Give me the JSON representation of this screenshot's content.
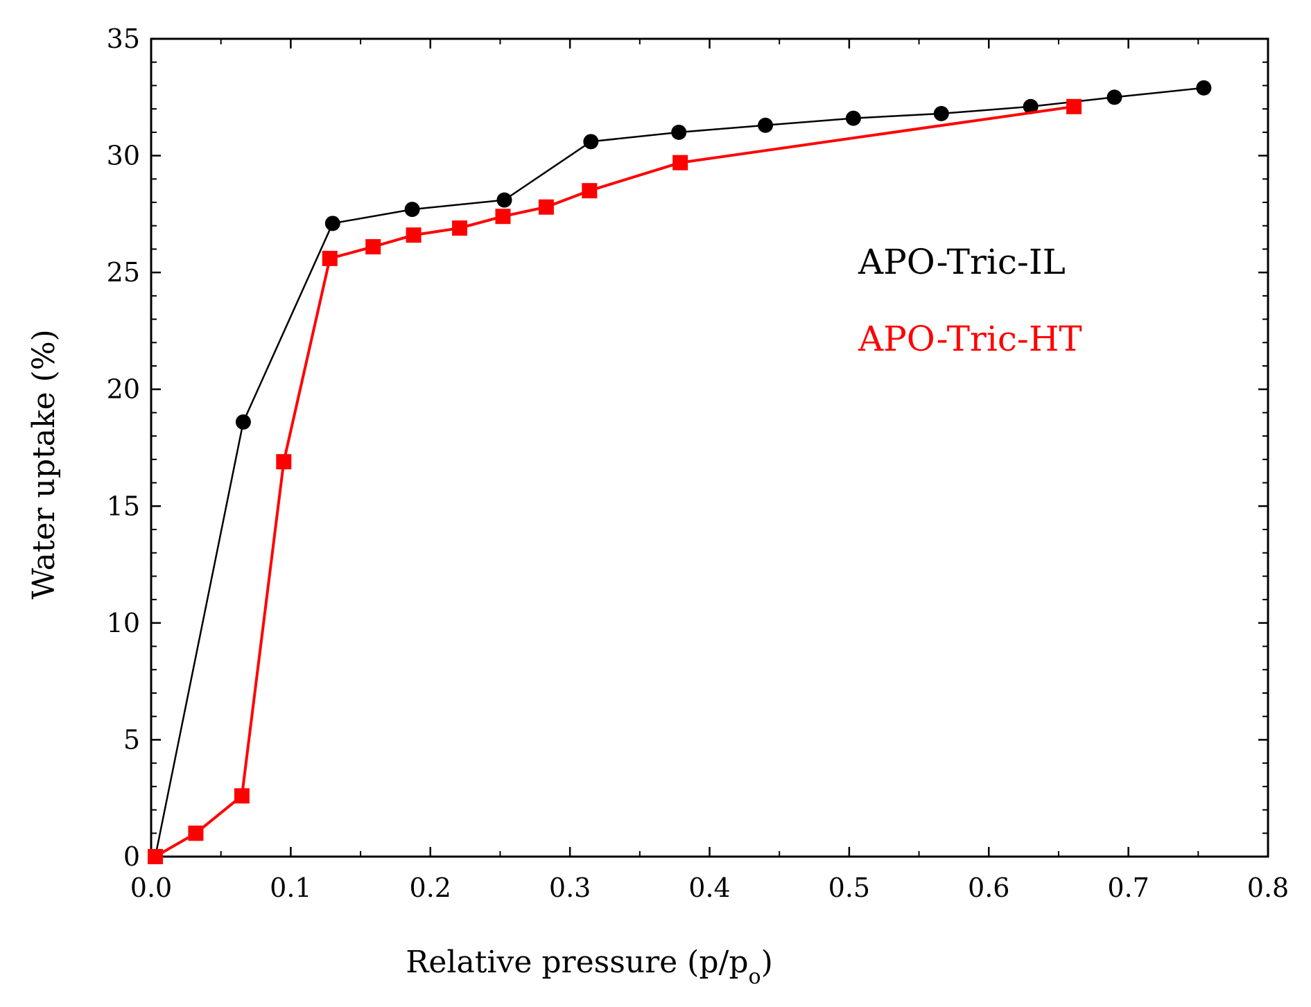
{
  "chart_data": {
    "type": "line",
    "title": "",
    "xlabel": "Relative pressure (p/p",
    "xlabel_subscript": "o",
    "xlabel_close": ")",
    "ylabel": "Water uptake (%)",
    "xlim": [
      0.0,
      0.8
    ],
    "ylim": [
      0,
      35
    ],
    "x_ticks": [
      0.0,
      0.1,
      0.2,
      0.3,
      0.4,
      0.5,
      0.6,
      0.7,
      0.8
    ],
    "x_tick_labels": [
      "0.0",
      "0.1",
      "0.2",
      "0.3",
      "0.4",
      "0.5",
      "0.6",
      "0.7",
      "0.8"
    ],
    "y_ticks": [
      0,
      5,
      10,
      15,
      20,
      25,
      30,
      35
    ],
    "y_tick_labels": [
      "0",
      "5",
      "10",
      "15",
      "20",
      "25",
      "30",
      "35"
    ],
    "grid": false,
    "legend_position": "right-center",
    "series": [
      {
        "name": "APO-Tric-IL",
        "color": "#000000",
        "marker": "circle",
        "x": [
          0.003,
          0.066,
          0.13,
          0.187,
          0.253,
          0.315,
          0.378,
          0.44,
          0.503,
          0.566,
          0.63,
          0.69,
          0.754
        ],
        "y": [
          0.0,
          18.6,
          27.1,
          27.7,
          28.1,
          30.6,
          31.0,
          31.3,
          31.6,
          31.8,
          32.1,
          32.5,
          32.9
        ]
      },
      {
        "name": "APO-Tric-HT",
        "color": "#ff0000",
        "marker": "square",
        "x": [
          0.003,
          0.032,
          0.065,
          0.095,
          0.128,
          0.159,
          0.188,
          0.221,
          0.252,
          0.283,
          0.314,
          0.379,
          0.661
        ],
        "y": [
          0.0,
          1.0,
          2.6,
          16.9,
          25.6,
          26.1,
          26.6,
          26.9,
          27.4,
          27.8,
          28.5,
          29.7,
          32.1
        ]
      }
    ]
  }
}
